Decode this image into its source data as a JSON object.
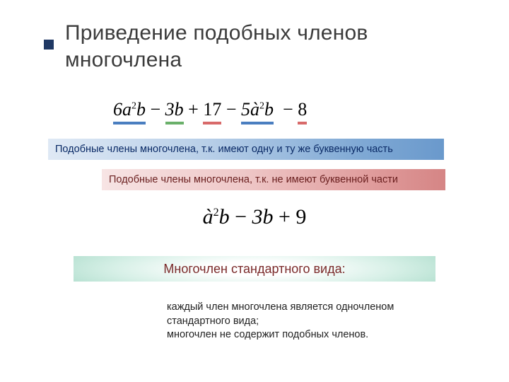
{
  "colors": {
    "bullet": "#1f3864",
    "title_text": "#3b3b3b",
    "underline_blue": "#4a7ec0",
    "underline_red": "#d86a6a",
    "underline_green": "#6ab06a",
    "note1_text": "#0a2a66",
    "note1_grad": [
      "#dfe9f5",
      "#b8cfe8",
      "#7ea8d4",
      "#6a99cc"
    ],
    "note2_text": "#6a1f1f",
    "note2_grad": [
      "#f7e4e4",
      "#efc9c9",
      "#df9a9a",
      "#d58585"
    ],
    "result_text": "#7a2a2a",
    "result_grad": [
      "#ffffff",
      "#d7f0e7",
      "#9fd6c2"
    ],
    "explain_text": "#222222",
    "background": "#ffffff"
  },
  "typography": {
    "title_fontsize": 30,
    "formula1_fontsize": 26,
    "formula2_fontsize": 30,
    "note_fontsize": 14.5,
    "result_fontsize": 18,
    "explain_fontsize": 14.5,
    "title_font": "Arial",
    "formula_font": "Times New Roman"
  },
  "title": {
    "line1": "Приведение подобных членов",
    "line2": "многочлена"
  },
  "formula1": {
    "terms": [
      {
        "text": "6a²b",
        "underline": "blue",
        "sign": ""
      },
      {
        "text": "3b",
        "underline": "green",
        "sign": " − "
      },
      {
        "text": "17",
        "underline": "red",
        "sign": " + "
      },
      {
        "text": "5à²b",
        "underline": "blue",
        "sign": " − "
      },
      {
        "text": "8",
        "underline": "red",
        "sign": " − "
      }
    ]
  },
  "note1": "Подобные члены многочлена, т.к. имеют одну и ту же буквенную часть",
  "note2": "Подобные члены многочлена, т.к. не имеют буквенной части",
  "formula2": "à²b − 3b + 9",
  "result_label": "Многочлен стандартного вида:",
  "explain": {
    "line1": "каждый член многочлена является одночленом",
    "line2": "стандартного вида;",
    "line3": "многочлен не содержит подобных членов."
  }
}
